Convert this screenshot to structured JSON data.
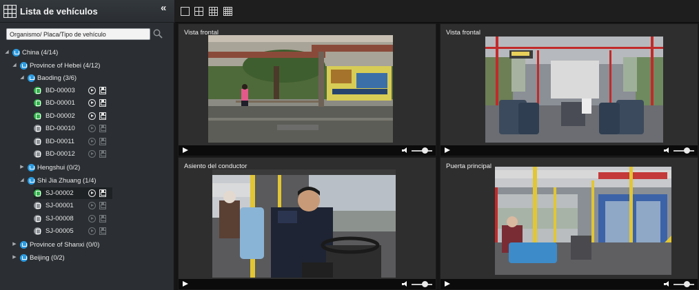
{
  "sidebar": {
    "title": "Lista de vehículos",
    "search": {
      "placeholder": "Organismo/ Placa/Tipo de vehículo",
      "value": ""
    },
    "tree": {
      "china": "China (4/14)",
      "hebei": "Province of Hebei (4/12)",
      "baoding": "Baoding (3/6)",
      "baoding_vehicles": [
        {
          "label": "BD-00003",
          "status": "online"
        },
        {
          "label": "BD-00001",
          "status": "online"
        },
        {
          "label": "BD-00002",
          "status": "online"
        },
        {
          "label": "BD-00010",
          "status": "offline"
        },
        {
          "label": "BD-00011",
          "status": "offline"
        },
        {
          "label": "BD-00012",
          "status": "offline"
        }
      ],
      "hengshui": "Hengshui (0/2)",
      "shijiazhuang": "Shi Jia Zhuang (1/4)",
      "sjz_vehicles": [
        {
          "label": "SJ-00002",
          "status": "online"
        },
        {
          "label": "SJ-00001",
          "status": "offline"
        },
        {
          "label": "SJ-00008",
          "status": "offline"
        },
        {
          "label": "SJ-00005",
          "status": "offline"
        }
      ],
      "shanxi": "Province of  Shanxi (0/0)",
      "beijing": "Beijing (0/2)"
    }
  },
  "panes": [
    {
      "title": "Vista frontal"
    },
    {
      "title": "Vista frontal"
    },
    {
      "title": "Asiento del conductor"
    },
    {
      "title": "Puerta principal"
    }
  ],
  "colors": {
    "online": "#32b14a",
    "offline": "#8c9196",
    "org": "#2d9be0"
  }
}
